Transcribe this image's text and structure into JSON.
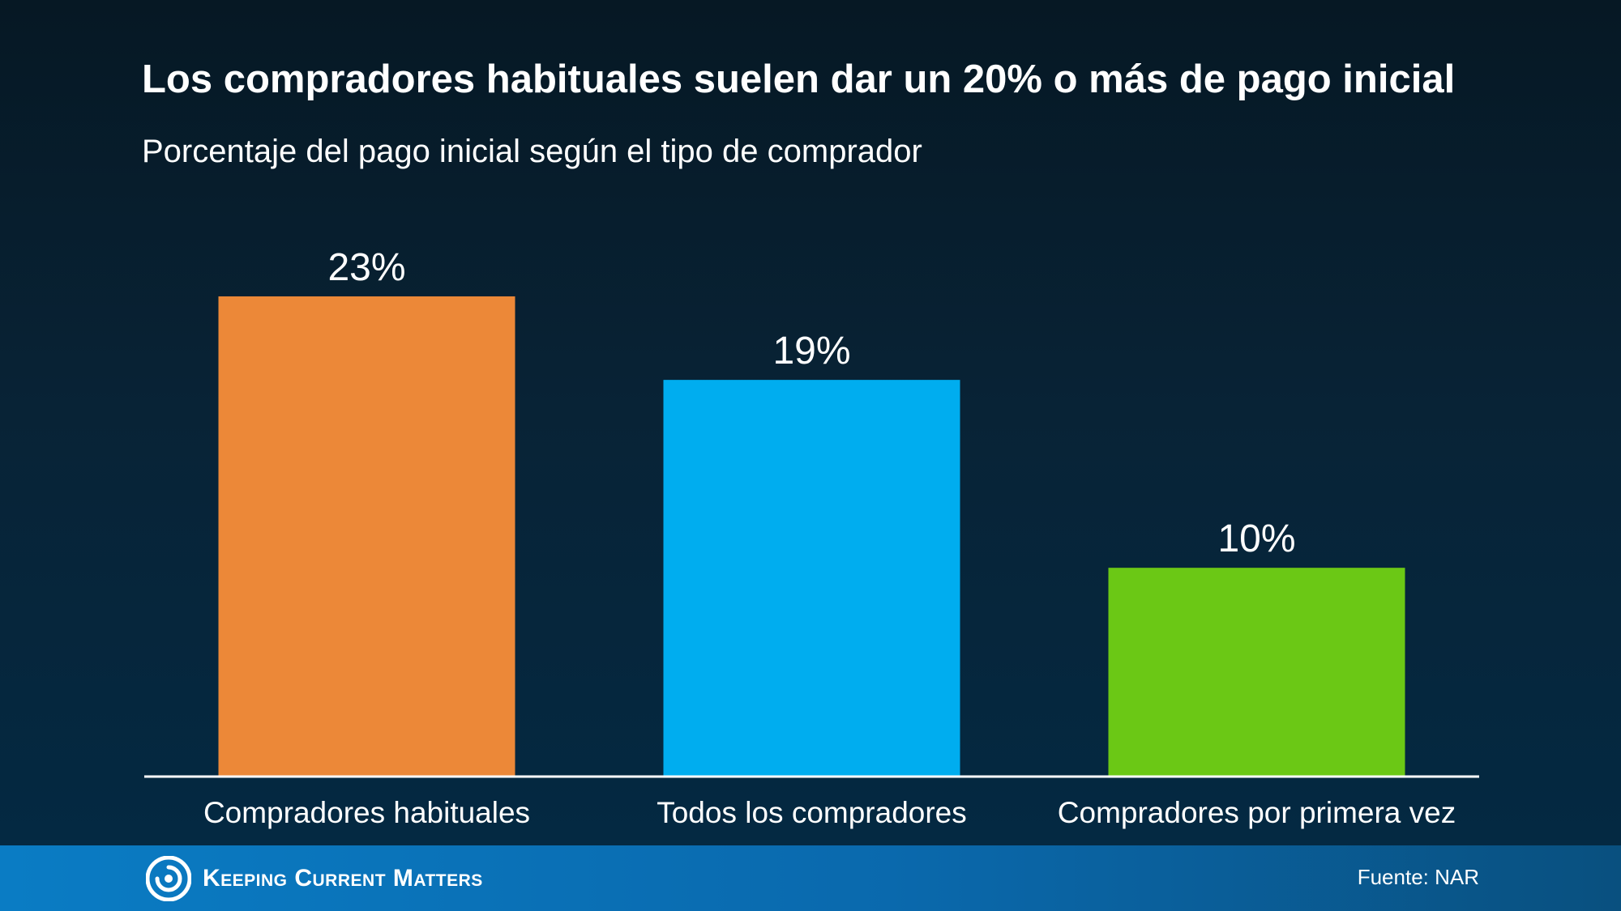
{
  "chart_data": {
    "type": "bar",
    "title": "Los compradores habituales suelen dar un 20% o más de pago inicial",
    "subtitle": "Porcentaje del pago inicial según el tipo de comprador",
    "categories": [
      "Compradores habituales",
      "Todos los compradores",
      "Compradores por primera vez"
    ],
    "values": [
      23,
      19,
      10
    ],
    "value_labels": [
      "23%",
      "19%",
      "10%"
    ],
    "colors": [
      "#ec8838",
      "#00adef",
      "#6bc815"
    ],
    "ylim": [
      0,
      23
    ],
    "grid": false,
    "legend": "none"
  },
  "footer": {
    "brand": "Keeping Current Matters",
    "source": "Fuente: NAR",
    "logo_icon": "swirl-logo-icon"
  }
}
